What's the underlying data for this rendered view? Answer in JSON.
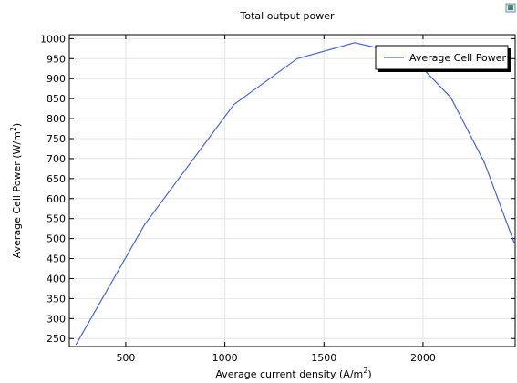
{
  "chart_data": {
    "type": "line",
    "title": "Total output power",
    "xlabel": "Average current density (A/m",
    "xlabel_sup": "2",
    "xlabel_end": ")",
    "ylabel": "Average Cell Power (W/m",
    "ylabel_sup": "2",
    "ylabel_end": ")",
    "xlim": [
      215,
      2465
    ],
    "ylim": [
      230,
      1010
    ],
    "x_ticks": [
      500,
      1000,
      1500,
      2000
    ],
    "y_ticks": [
      250,
      300,
      350,
      400,
      450,
      500,
      550,
      600,
      650,
      700,
      750,
      800,
      850,
      900,
      950,
      1000
    ],
    "grid": true,
    "legend_position": "top-right",
    "series": [
      {
        "name": "Average Cell Power",
        "color": "#4363e0",
        "x": [
          250,
          595,
          1045,
          1365,
          1655,
          1830,
          2000,
          2140,
          2310,
          2460
        ],
        "y": [
          236,
          535,
          835,
          950,
          990,
          970,
          925,
          853,
          690,
          490
        ]
      }
    ]
  },
  "toolbar": {
    "corner_icon": "image-icon"
  }
}
